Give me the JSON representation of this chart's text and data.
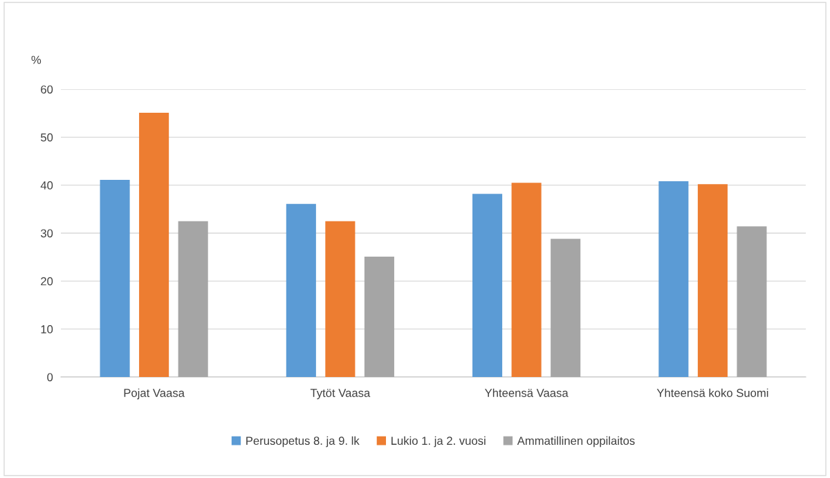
{
  "chart_data": {
    "type": "bar",
    "ylabel": "%",
    "categories": [
      "Pojat Vaasa",
      "Tytöt Vaasa",
      "Yhteensä Vaasa",
      "Yhteensä koko Suomi"
    ],
    "series": [
      {
        "name": "Perusopetus 8. ja 9. lk",
        "color": "#5b9bd5",
        "values": [
          41.1,
          36.1,
          38.2,
          40.8
        ]
      },
      {
        "name": "Lukio 1. ja 2. vuosi",
        "color": "#ed7d31",
        "values": [
          55.1,
          32.5,
          40.5,
          40.2
        ]
      },
      {
        "name": "Ammatillinen oppilaitos",
        "color": "#a5a5a5",
        "values": [
          32.5,
          25.1,
          28.8,
          31.4
        ]
      }
    ],
    "ylim": [
      0,
      60
    ],
    "yticks": [
      0,
      10,
      20,
      30,
      40,
      50,
      60
    ],
    "grid": "y",
    "legend": "bottom"
  }
}
